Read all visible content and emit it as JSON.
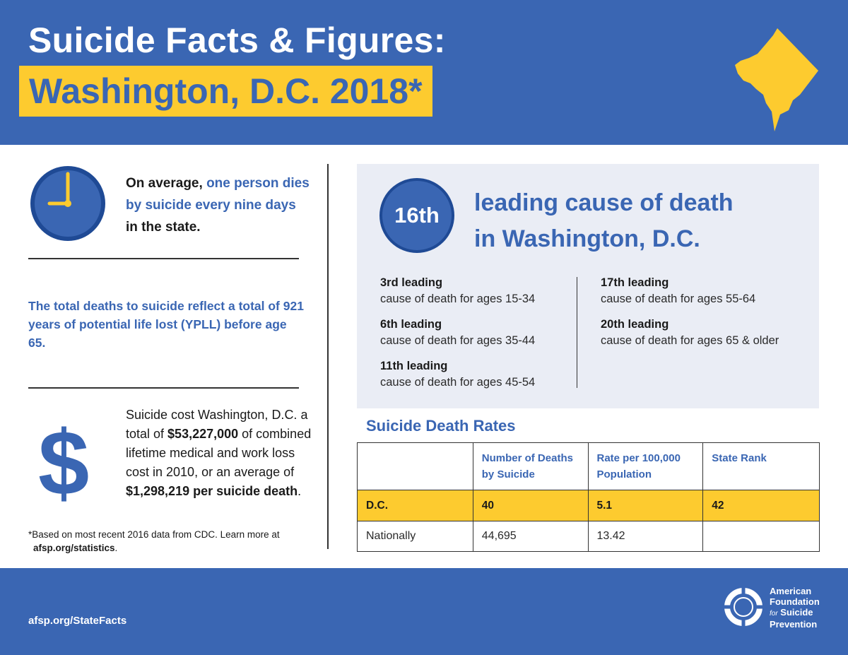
{
  "header": {
    "title_line1": "Suicide Facts & Figures:",
    "title_line2": "Washington, D.C. 2018*",
    "accent_color": "#fdcb2f",
    "brand_color": "#3a66b3"
  },
  "average": {
    "prefix": "On average, ",
    "highlight": "one person dies by suicide every nine days",
    "suffix": " in the state."
  },
  "ypll": {
    "text": "The total deaths to suicide reflect a total of 921 years of potential life lost (YPLL) before age 65."
  },
  "cost": {
    "part1": "Suicide cost Washington, D.C. a total of ",
    "total": "$53,227,000",
    "part2": " of combined lifetime medical and work loss cost in 2010, or an average of ",
    "average": "$1,298,219 per suicide death",
    "part3": "."
  },
  "footnote": {
    "text": "*Based on most recent 2016 data from CDC. Learn more at",
    "link": "afsp.org/statistics",
    "end": "."
  },
  "leading": {
    "rank": "16th",
    "title_line1": "leading cause of death",
    "title_line2": "in Washington, D.C.",
    "items": [
      {
        "rank": "3rd leading",
        "desc": "cause of death for ages 15-34"
      },
      {
        "rank": "6th leading",
        "desc": "cause of death for ages 35-44"
      },
      {
        "rank": "11th leading",
        "desc": "cause of death for ages 45-54"
      },
      {
        "rank": "17th leading",
        "desc": "cause of death for ages 55-64"
      },
      {
        "rank": "20th leading",
        "desc": "cause of death for ages 65 & older"
      }
    ]
  },
  "rates": {
    "title": "Suicide Death Rates",
    "headers": [
      "",
      "Number of Deaths by Suicide",
      "Rate per 100,000 Population",
      "State Rank"
    ],
    "rows": [
      [
        "D.C.",
        "40",
        "5.1",
        "42"
      ],
      [
        "Nationally",
        "44,695",
        "13.42",
        ""
      ]
    ]
  },
  "footer": {
    "link": "afsp.org/StateFacts",
    "org_line1": "American",
    "org_line2": "Foundation",
    "org_for": "for",
    "org_line3": "Suicide",
    "org_line4": "Prevention"
  },
  "icons": {
    "clock": "clock-icon",
    "dollar": "dollar-sign-icon",
    "map": "dc-map-icon",
    "logo": "lifesaver-logo-icon"
  }
}
